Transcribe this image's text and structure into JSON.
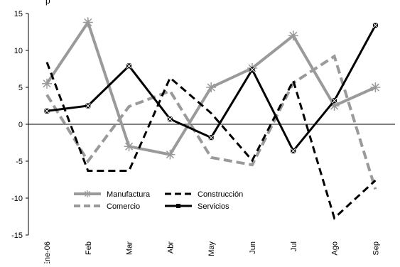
{
  "top_text": "p",
  "chart_data": {
    "type": "line",
    "title": "",
    "xlabel": "",
    "ylabel": "",
    "categories": [
      "Ene-06",
      "Feb",
      "Mar",
      "Abr",
      "May",
      "Jun",
      "Jul",
      "Ago",
      "Sep"
    ],
    "ylim": [
      -15,
      15
    ],
    "yticks": [
      15,
      10,
      5,
      0,
      -5,
      -10,
      -15
    ],
    "ytick_labels": [
      "15",
      "10",
      "5",
      "0",
      "-5",
      "-10",
      "-15"
    ],
    "grid": false,
    "legend_position": "bottom-left",
    "series": [
      {
        "name": "Manufactura",
        "values": [
          5.5,
          13.8,
          -3.0,
          -4.1,
          5.0,
          7.6,
          12.0,
          2.5,
          5.0
        ],
        "color": "#9a9a9a",
        "dash": "solid",
        "marker": "asterisk"
      },
      {
        "name": "Comercio",
        "values": [
          4.0,
          -5.0,
          2.4,
          4.5,
          -4.5,
          -5.5,
          5.6,
          9.2,
          -8.8
        ],
        "color": "#9a9a9a",
        "dash": "dashed",
        "marker": "none"
      },
      {
        "name": "Construcción",
        "values": [
          8.4,
          -6.3,
          -6.3,
          6.3,
          1.5,
          -4.9,
          5.9,
          -12.7,
          -7.6
        ],
        "color": "#000000",
        "dash": "dashed",
        "marker": "none"
      },
      {
        "name": "Servicios",
        "values": [
          1.8,
          2.5,
          7.9,
          0.7,
          -1.8,
          7.4,
          -3.6,
          3.2,
          13.4
        ],
        "color": "#000000",
        "dash": "solid",
        "marker": "square-x"
      }
    ]
  }
}
